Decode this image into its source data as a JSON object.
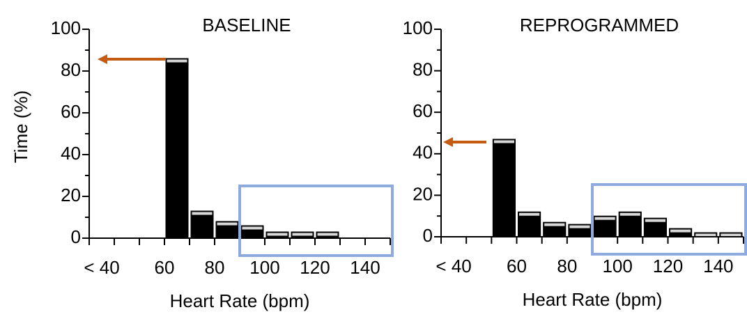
{
  "chart_data": [
    {
      "type": "histogram",
      "title": "BASELINE",
      "xlabel": "Heart Rate (bpm)",
      "ylabel": "Time (%)",
      "bins": [
        30,
        40,
        50,
        60,
        70,
        80,
        90,
        100,
        110,
        120,
        130,
        140,
        150
      ],
      "values": [
        0,
        0,
        0,
        86,
        13,
        8,
        6,
        3,
        3,
        3,
        0,
        0
      ],
      "color": "#000000",
      "xlim": [
        30,
        150
      ],
      "xticks": [
        {
          "value": 35,
          "label": "< 40"
        },
        60,
        80,
        100,
        120,
        140
      ],
      "ylim": [
        0,
        100
      ],
      "yticks": [
        0,
        20,
        40,
        60,
        80,
        100
      ]
    },
    {
      "type": "histogram",
      "title": "REPROGRAMMED",
      "xlabel": "Heart Rate (bpm)",
      "bins": [
        30,
        40,
        50,
        60,
        70,
        80,
        90,
        100,
        110,
        120,
        130,
        140,
        150
      ],
      "values": [
        0,
        0,
        47,
        12,
        7,
        6,
        10,
        12,
        9,
        4,
        2,
        2
      ],
      "color": "#000000",
      "xlim": [
        30,
        150
      ],
      "xticks": [
        {
          "value": 35,
          "label": "< 40"
        },
        60,
        80,
        100,
        120,
        140
      ],
      "ylim": [
        0,
        100
      ],
      "yticks": [
        0,
        20,
        40,
        60,
        80,
        100
      ]
    }
  ]
}
